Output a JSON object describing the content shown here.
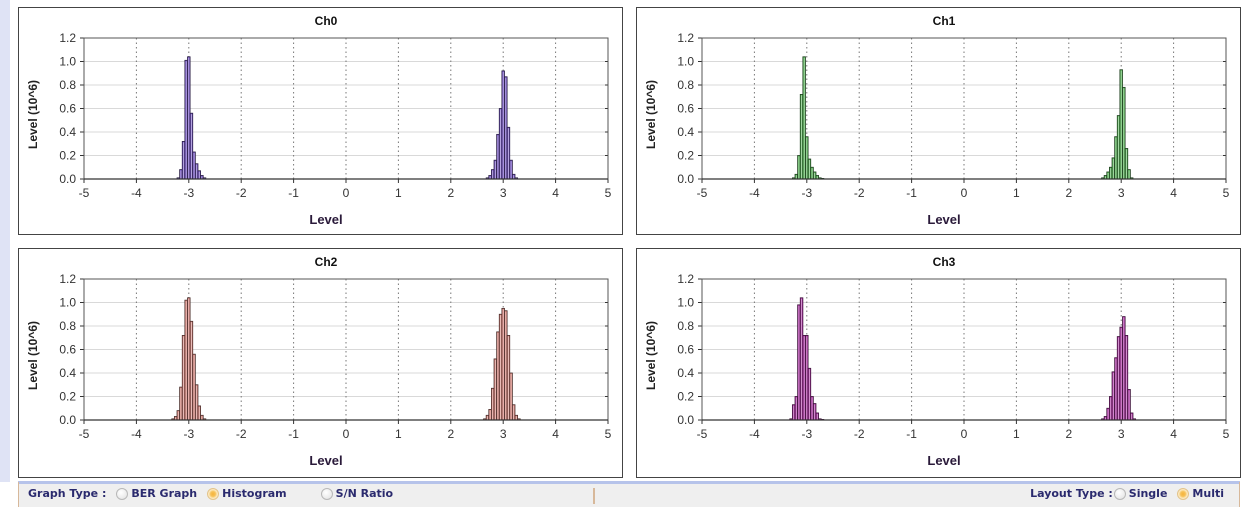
{
  "chart_data": [
    {
      "type": "bar",
      "title": "Ch0",
      "xlabel": "Level",
      "ylabel": "Level (10^6)",
      "xlim": [
        -5,
        5
      ],
      "ylim": [
        0,
        1.2
      ],
      "xticks": [
        "-5",
        "-4",
        "-3",
        "-2",
        "-1",
        "0",
        "1",
        "2",
        "3",
        "4",
        "5"
      ],
      "yticks": [
        "0.0",
        "0.2",
        "0.4",
        "0.6",
        "0.8",
        "1.0",
        "1.2"
      ],
      "grid": true,
      "color": "#7b5cc8",
      "bin_width": 0.05,
      "x": [
        -3.2,
        -3.15,
        -3.1,
        -3.05,
        -3.0,
        -2.95,
        -2.9,
        -2.85,
        -2.8,
        -2.75,
        -2.7,
        2.7,
        2.75,
        2.8,
        2.85,
        2.9,
        2.95,
        3.0,
        3.05,
        3.1,
        3.15,
        3.2,
        3.25
      ],
      "values": [
        0.01,
        0.08,
        0.32,
        1.01,
        1.04,
        0.56,
        0.23,
        0.13,
        0.07,
        0.03,
        0.01,
        0.01,
        0.03,
        0.08,
        0.16,
        0.38,
        0.6,
        0.92,
        0.87,
        0.44,
        0.16,
        0.04,
        0.01
      ]
    },
    {
      "type": "bar",
      "title": "Ch1",
      "xlabel": "Level",
      "ylabel": "Level (10^6)",
      "xlim": [
        -5,
        5
      ],
      "ylim": [
        0,
        1.2
      ],
      "xticks": [
        "-5",
        "-4",
        "-3",
        "-2",
        "-1",
        "0",
        "1",
        "2",
        "3",
        "4",
        "5"
      ],
      "yticks": [
        "0.0",
        "0.2",
        "0.4",
        "0.6",
        "0.8",
        "1.0",
        "1.2"
      ],
      "grid": true,
      "color": "#5cb85c",
      "bin_width": 0.05,
      "x": [
        -3.25,
        -3.2,
        -3.15,
        -3.1,
        -3.05,
        -3.0,
        -2.95,
        -2.9,
        -2.85,
        -2.8,
        -2.75,
        -2.7,
        2.65,
        2.7,
        2.75,
        2.8,
        2.85,
        2.9,
        2.95,
        3.0,
        3.05,
        3.1,
        3.15,
        3.2
      ],
      "values": [
        0.01,
        0.04,
        0.2,
        0.72,
        1.04,
        0.36,
        0.17,
        0.1,
        0.06,
        0.03,
        0.01,
        0.005,
        0.01,
        0.03,
        0.06,
        0.1,
        0.18,
        0.36,
        0.54,
        0.93,
        0.78,
        0.26,
        0.08,
        0.01
      ]
    },
    {
      "type": "bar",
      "title": "Ch2",
      "xlabel": "Level",
      "ylabel": "Level (10^6)",
      "xlim": [
        -5,
        5
      ],
      "ylim": [
        0,
        1.2
      ],
      "xticks": [
        "-5",
        "-4",
        "-3",
        "-2",
        "-1",
        "0",
        "1",
        "2",
        "3",
        "4",
        "5"
      ],
      "yticks": [
        "0.0",
        "0.2",
        "0.4",
        "0.6",
        "0.8",
        "1.0",
        "1.2"
      ],
      "grid": true,
      "color": "#d98880",
      "bin_width": 0.05,
      "x": [
        -3.3,
        -3.25,
        -3.2,
        -3.15,
        -3.1,
        -3.05,
        -3.0,
        -2.95,
        -2.9,
        -2.85,
        -2.8,
        -2.75,
        -2.7,
        2.65,
        2.7,
        2.75,
        2.8,
        2.85,
        2.9,
        2.95,
        3.0,
        3.05,
        3.1,
        3.15,
        3.2,
        3.25,
        3.3
      ],
      "values": [
        0.01,
        0.03,
        0.08,
        0.28,
        0.72,
        1.02,
        1.04,
        0.84,
        0.56,
        0.3,
        0.12,
        0.04,
        0.01,
        0.01,
        0.04,
        0.09,
        0.27,
        0.52,
        0.75,
        0.9,
        0.95,
        0.93,
        0.72,
        0.4,
        0.13,
        0.04,
        0.01
      ]
    },
    {
      "type": "bar",
      "title": "Ch3",
      "xlabel": "Level",
      "ylabel": "Level (10^6)",
      "xlim": [
        -5,
        5
      ],
      "ylim": [
        0,
        1.2
      ],
      "xticks": [
        "-5",
        "-4",
        "-3",
        "-2",
        "-1",
        "0",
        "1",
        "2",
        "3",
        "4",
        "5"
      ],
      "yticks": [
        "0.0",
        "0.2",
        "0.4",
        "0.6",
        "0.8",
        "1.0",
        "1.2"
      ],
      "grid": true,
      "color": "#b03aa8",
      "bin_width": 0.05,
      "x": [
        -3.3,
        -3.25,
        -3.2,
        -3.15,
        -3.1,
        -3.05,
        -3.0,
        -2.95,
        -2.9,
        -2.85,
        -2.8,
        -2.75,
        -2.7,
        2.65,
        2.7,
        2.75,
        2.8,
        2.85,
        2.9,
        2.95,
        3.0,
        3.05,
        3.1,
        3.15,
        3.2,
        3.25
      ],
      "values": [
        0.01,
        0.13,
        0.2,
        0.98,
        1.04,
        0.72,
        0.72,
        0.44,
        0.2,
        0.14,
        0.06,
        0.01,
        0.005,
        0.01,
        0.03,
        0.1,
        0.2,
        0.41,
        0.53,
        0.71,
        0.79,
        0.88,
        0.72,
        0.26,
        0.06,
        0.01
      ]
    }
  ],
  "bottom_bar": {
    "graph_type_label": "Graph Type :",
    "graph_options": [
      {
        "label": "BER Graph",
        "selected": false
      },
      {
        "label": "Histogram",
        "selected": true
      },
      {
        "label": "S/N Ratio",
        "selected": false
      }
    ],
    "layout_type_label": "Layout Type :",
    "layout_options": [
      {
        "label": "Single",
        "selected": false
      },
      {
        "label": "Multi",
        "selected": true
      }
    ]
  }
}
